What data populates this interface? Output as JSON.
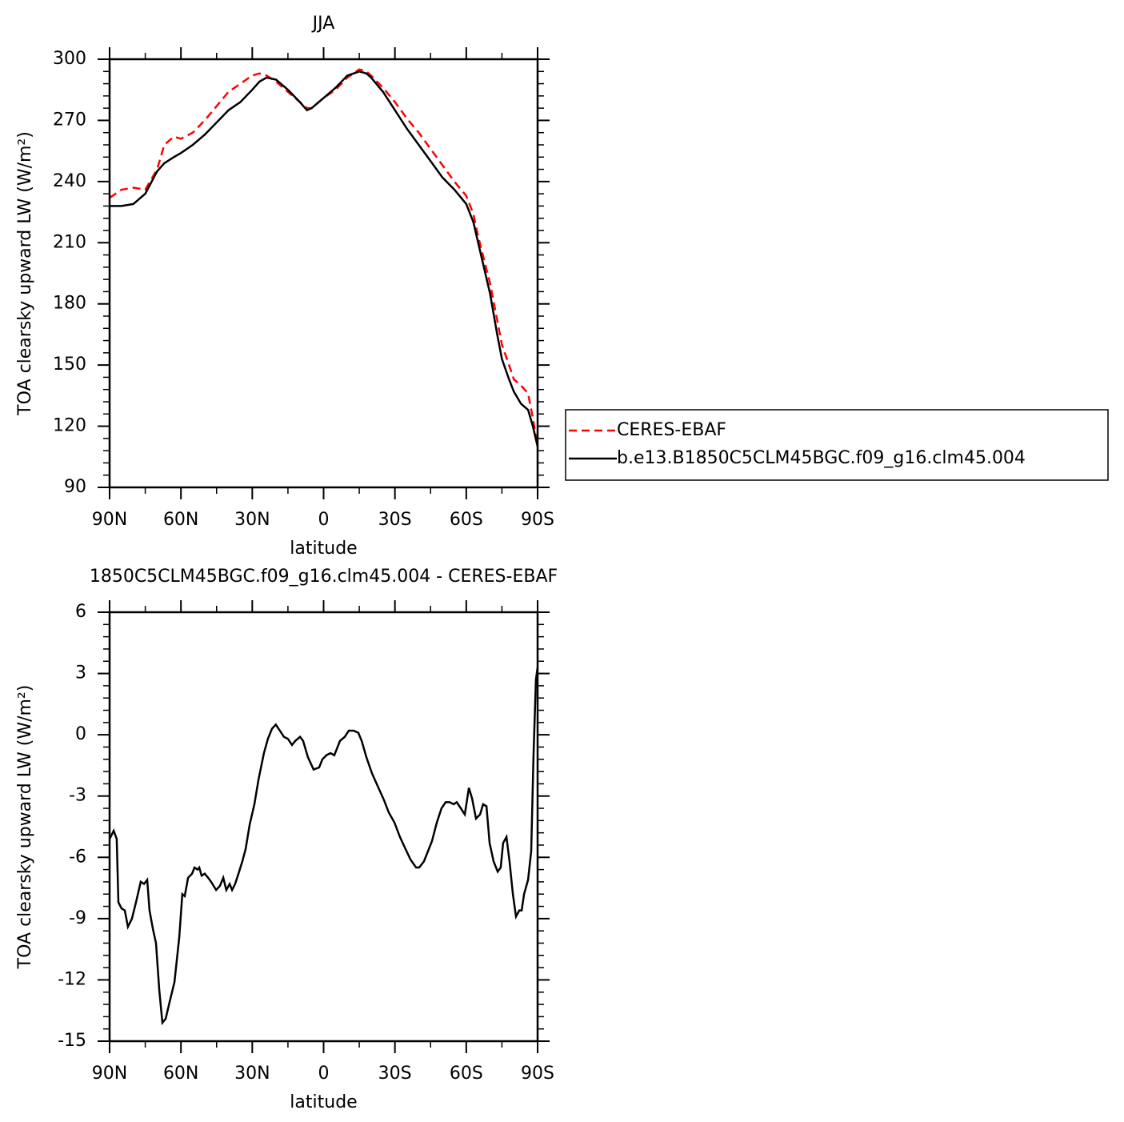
{
  "chart_data": [
    {
      "type": "line",
      "title": "JJA",
      "xlabel": "latitude",
      "ylabel": "TOA clearsky upward LW (W/m²)",
      "x": [
        90,
        85,
        80,
        75,
        70,
        67,
        63,
        60,
        55,
        50,
        45,
        40,
        35,
        30,
        27,
        24,
        20,
        15,
        10,
        7,
        5,
        0,
        -5,
        -10,
        -15,
        -18,
        -20,
        -25,
        -30,
        -35,
        -40,
        -45,
        -50,
        -55,
        -60,
        -63,
        -65,
        -70,
        -73,
        -75,
        -78,
        -80,
        -83,
        -86,
        -88,
        -90
      ],
      "series": [
        {
          "name": "CERES-EBAF",
          "color": "#ff0000",
          "dash": true,
          "values": [
            232,
            236,
            237,
            236,
            246,
            258,
            262,
            261,
            264,
            270,
            277,
            284,
            288,
            292,
            293,
            292,
            289,
            284,
            279,
            276,
            276,
            281,
            285,
            291,
            295,
            294,
            292,
            286,
            279,
            271,
            264,
            256,
            248,
            240,
            233,
            224,
            213,
            190,
            172,
            160,
            150,
            143,
            140,
            136,
            124,
            110
          ]
        },
        {
          "name": "b.e13.B1850C5CLM45BGC.f09_g16.clm45.004",
          "color": "#000000",
          "dash": false,
          "values": [
            228,
            228,
            229,
            234,
            245,
            249,
            252,
            254,
            258,
            263,
            269,
            275,
            279,
            285,
            289,
            291,
            290,
            285,
            279,
            275,
            276,
            281,
            286,
            292,
            294,
            293,
            291,
            284,
            275,
            266,
            258,
            250,
            242,
            236,
            229,
            220,
            210,
            185,
            165,
            153,
            143,
            137,
            131,
            128,
            120,
            110
          ]
        }
      ],
      "xlim": [
        90,
        -90
      ],
      "xticks": [
        {
          "value": 90,
          "label": "90N"
        },
        {
          "value": 60,
          "label": "60N"
        },
        {
          "value": 30,
          "label": "30N"
        },
        0,
        {
          "value": -30,
          "label": "30S"
        },
        {
          "value": -60,
          "label": "60S"
        },
        {
          "value": -90,
          "label": "90S"
        }
      ],
      "ylim": [
        90,
        300
      ],
      "yticks": [
        90,
        120,
        150,
        180,
        210,
        240,
        270,
        300
      ],
      "legend": "right"
    },
    {
      "type": "line",
      "title": "1850C5CLM45BGC.f09_g16.clm45.004 - CERES-EBAF",
      "xlabel": "latitude",
      "ylabel": "TOA clearsky upward LW (W/m²)",
      "x": [
        90,
        88.3,
        87.0,
        86.3,
        85.0,
        83.6,
        82.3,
        80.6,
        78.9,
        76.9,
        75.5,
        74.2,
        73.2,
        71.8,
        70.5,
        69.1,
        67.8,
        66.4,
        64.8,
        62.7,
        60.7,
        59.4,
        58.4,
        57.0,
        55.3,
        54.3,
        53.0,
        52.3,
        51.3,
        50.0,
        48.6,
        47.3,
        45.2,
        43.6,
        42.2,
        40.9,
        39.5,
        38.5,
        37.2,
        35.8,
        34.2,
        32.8,
        31.1,
        29.1,
        27.4,
        25.1,
        23.4,
        21.7,
        20.1,
        18.4,
        16.7,
        15.0,
        13.3,
        11.9,
        9.9,
        8.6,
        6.6,
        4.2,
        1.9,
        0.5,
        -1.2,
        -2.9,
        -4.5,
        -6.9,
        -8.9,
        -10.6,
        -12.6,
        -14.6,
        -16.0,
        -18.0,
        -20.4,
        -22.7,
        -25.4,
        -27.4,
        -29.8,
        -32.1,
        -34.5,
        -36.5,
        -38.9,
        -40.2,
        -42.2,
        -43.9,
        -45.6,
        -47.6,
        -49.6,
        -51.3,
        -53.0,
        -54.7,
        -56.0,
        -57.7,
        -59.4,
        -61.1,
        -62.4,
        -64.1,
        -65.8,
        -67.1,
        -68.5,
        -69.8,
        -71.5,
        -73.2,
        -74.5,
        -75.5,
        -76.9,
        -78.2,
        -79.6,
        -80.9,
        -82.3,
        -83.3,
        -84.3,
        -86.0,
        -87.3,
        -88.3,
        -89.3,
        -90
      ],
      "series": [
        {
          "color": "#000000",
          "dash": false,
          "values": [
            -5.1,
            -4.7,
            -5.1,
            -8.2,
            -8.5,
            -8.6,
            -9.4,
            -9.0,
            -8.2,
            -7.2,
            -7.3,
            -7.1,
            -8.6,
            -9.5,
            -10.2,
            -12.5,
            -14.1,
            -13.9,
            -13.1,
            -12.1,
            -9.9,
            -7.8,
            -7.9,
            -7.0,
            -6.8,
            -6.5,
            -6.6,
            -6.5,
            -6.9,
            -6.8,
            -7.0,
            -7.2,
            -7.6,
            -7.4,
            -7.0,
            -7.6,
            -7.3,
            -7.6,
            -7.3,
            -6.8,
            -6.2,
            -5.6,
            -4.4,
            -3.4,
            -2.2,
            -0.9,
            -0.2,
            0.3,
            0.5,
            0.2,
            -0.1,
            -0.2,
            -0.5,
            -0.3,
            -0.1,
            -0.3,
            -1.1,
            -1.7,
            -1.6,
            -1.2,
            -1.0,
            -0.9,
            -1.0,
            -0.3,
            -0.1,
            0.2,
            0.2,
            0.1,
            -0.3,
            -1.1,
            -1.9,
            -2.5,
            -3.2,
            -3.8,
            -4.3,
            -5.0,
            -5.6,
            -6.1,
            -6.5,
            -6.5,
            -6.2,
            -5.7,
            -5.2,
            -4.3,
            -3.6,
            -3.3,
            -3.3,
            -3.4,
            -3.3,
            -3.6,
            -3.9,
            -2.6,
            -3.1,
            -4.1,
            -3.9,
            -3.4,
            -3.5,
            -5.3,
            -6.2,
            -6.7,
            -6.5,
            -5.3,
            -5.0,
            -6.2,
            -7.8,
            -8.9,
            -8.6,
            -8.6,
            -7.8,
            -7.1,
            -5.7,
            -1.0,
            2.7,
            3.3
          ]
        }
      ],
      "xlim": [
        90,
        -90
      ],
      "xticks": [
        {
          "value": 90,
          "label": "90N"
        },
        {
          "value": 60,
          "label": "60N"
        },
        {
          "value": 30,
          "label": "30N"
        },
        0,
        {
          "value": -30,
          "label": "30S"
        },
        {
          "value": -60,
          "label": "60S"
        },
        {
          "value": -90,
          "label": "90S"
        }
      ],
      "ylim": [
        -15,
        6
      ],
      "yticks": [
        -15,
        -12,
        -9,
        -6,
        -3,
        0,
        3,
        6
      ]
    }
  ]
}
